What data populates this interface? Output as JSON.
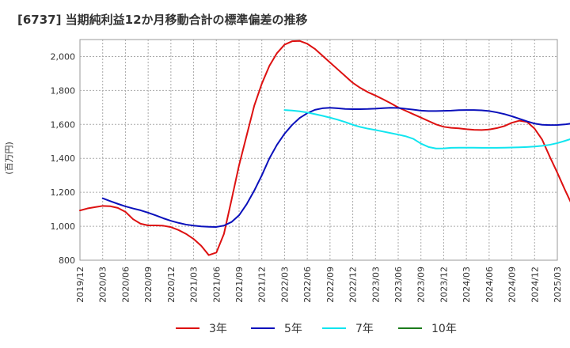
{
  "chart_data": {
    "type": "line",
    "title": "[6737]  当期純利益12か月移動合計の標準偏差の推移",
    "ylabel": "(百万円)",
    "xlabel": "",
    "ylim": [
      800,
      2100
    ],
    "yticks": [
      800,
      1000,
      1200,
      1400,
      1600,
      1800,
      2000
    ],
    "ytick_labels": [
      "800",
      "1,000",
      "1,200",
      "1,400",
      "1,600",
      "1,800",
      "2,000"
    ],
    "grid": true,
    "legend_position": "bottom",
    "x_start": "2019/12",
    "x_step_months": 1,
    "xticks": [
      "2019/12",
      "2020/03",
      "2020/06",
      "2020/09",
      "2020/12",
      "2021/03",
      "2021/06",
      "2021/09",
      "2021/12",
      "2022/03",
      "2022/06",
      "2022/09",
      "2022/12",
      "2023/03",
      "2023/06",
      "2023/09",
      "2023/12",
      "2024/03",
      "2024/06",
      "2024/09",
      "2024/12",
      "2025/03"
    ],
    "series": [
      {
        "name": "3年",
        "color": "#dd1111",
        "start_index": 0,
        "values": [
          1093,
          1105,
          1113,
          1120,
          1118,
          1108,
          1085,
          1042,
          1015,
          1005,
          1005,
          1003,
          995,
          978,
          955,
          925,
          885,
          830,
          845,
          955,
          1155,
          1360,
          1535,
          1710,
          1840,
          1945,
          2020,
          2070,
          2090,
          2092,
          2075,
          2045,
          2005,
          1965,
          1925,
          1885,
          1845,
          1815,
          1790,
          1770,
          1748,
          1725,
          1700,
          1680,
          1660,
          1640,
          1620,
          1600,
          1586,
          1580,
          1577,
          1572,
          1568,
          1567,
          1570,
          1578,
          1590,
          1610,
          1622,
          1615,
          1575,
          1510,
          1410,
          1315,
          1215,
          1120
        ]
      },
      {
        "name": "5年",
        "color": "#0a10bb",
        "start_index": 3,
        "values": [
          1165,
          1148,
          1132,
          1117,
          1105,
          1094,
          1080,
          1064,
          1047,
          1032,
          1020,
          1010,
          1004,
          999,
          997,
          996,
          1004,
          1025,
          1065,
          1130,
          1210,
          1300,
          1400,
          1480,
          1545,
          1597,
          1638,
          1666,
          1686,
          1695,
          1698,
          1695,
          1691,
          1690,
          1690,
          1691,
          1693,
          1696,
          1698,
          1697,
          1692,
          1687,
          1681,
          1679,
          1679,
          1680,
          1681,
          1684,
          1685,
          1685,
          1683,
          1679,
          1671,
          1661,
          1648,
          1633,
          1618,
          1605,
          1598,
          1596,
          1597,
          1600,
          1606,
          1615
        ]
      },
      {
        "name": "7年",
        "color": "#11e5ef",
        "start_index": 27,
        "values": [
          1685,
          1682,
          1677,
          1670,
          1661,
          1651,
          1640,
          1628,
          1614,
          1598,
          1585,
          1575,
          1567,
          1558,
          1549,
          1540,
          1530,
          1515,
          1487,
          1467,
          1458,
          1459,
          1462,
          1463,
          1463,
          1463,
          1462,
          1462,
          1462,
          1463,
          1464,
          1465,
          1467,
          1470,
          1474,
          1480,
          1490,
          1503,
          1517,
          1530,
          1544
        ]
      },
      {
        "name": "10年",
        "color": "#1c7c1c",
        "start_index": 0,
        "values": []
      }
    ]
  }
}
